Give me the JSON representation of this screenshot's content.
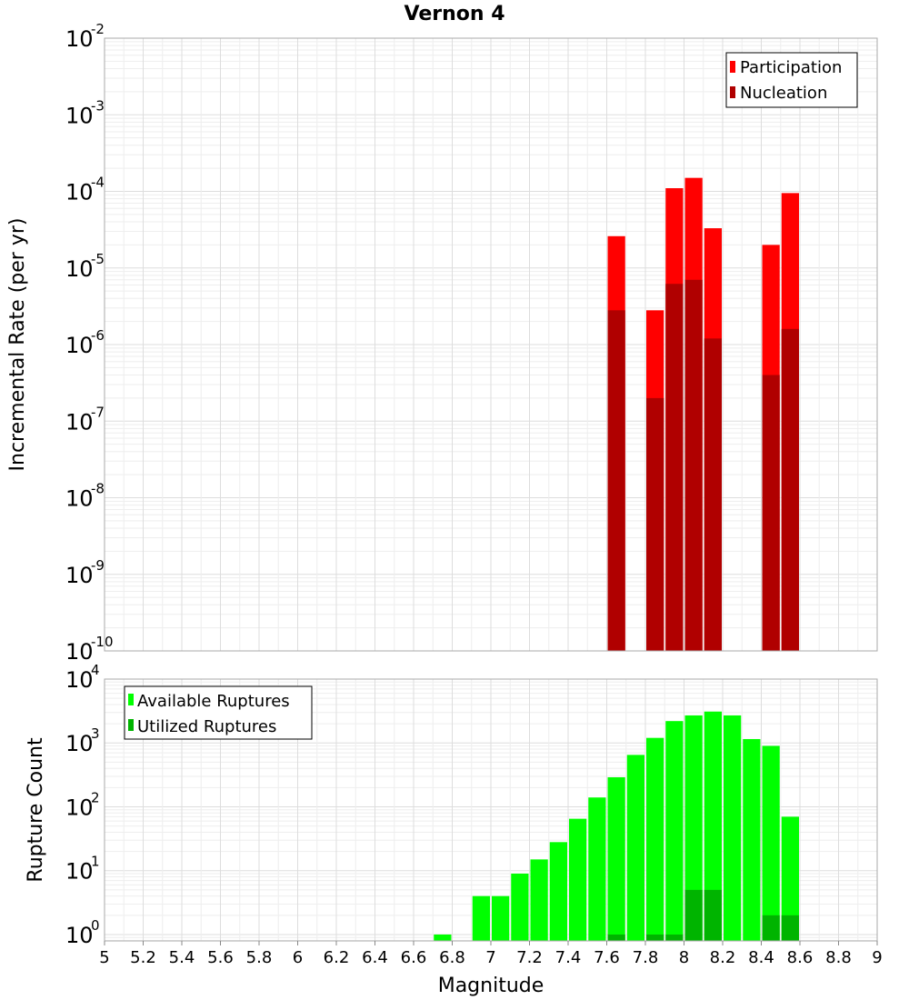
{
  "chart_data": [
    {
      "type": "bar",
      "title": "Vernon 4",
      "xlabel": "Magnitude",
      "ylabel": "Incremental Rate (per yr)",
      "yscale": "log",
      "ylim_exponent": [
        -10,
        -2
      ],
      "xlim": [
        5,
        9
      ],
      "grid": true,
      "legend_position": "top-right",
      "series": [
        {
          "name": "Participation",
          "color": "#ff0000",
          "points": [
            {
              "x": 7.65,
              "y": 2.6e-05
            },
            {
              "x": 7.85,
              "y": 2.8e-06
            },
            {
              "x": 7.95,
              "y": 0.00011
            },
            {
              "x": 8.05,
              "y": 0.00015
            },
            {
              "x": 8.15,
              "y": 3.3e-05
            },
            {
              "x": 8.45,
              "y": 2e-05
            },
            {
              "x": 8.55,
              "y": 9.5e-05
            }
          ]
        },
        {
          "name": "Nucleation",
          "color": "#b00000",
          "points": [
            {
              "x": 7.65,
              "y": 2.8e-06
            },
            {
              "x": 7.85,
              "y": 2e-07
            },
            {
              "x": 7.95,
              "y": 6.2e-06
            },
            {
              "x": 8.05,
              "y": 7e-06
            },
            {
              "x": 8.15,
              "y": 1.2e-06
            },
            {
              "x": 8.45,
              "y": 4e-07
            },
            {
              "x": 8.55,
              "y": 1.6e-06
            }
          ]
        }
      ]
    },
    {
      "type": "bar",
      "title": "",
      "xlabel": "Magnitude",
      "ylabel": "Rupture Count",
      "yscale": "log",
      "ylim_exponent": [
        -0.1,
        4
      ],
      "xlim": [
        5,
        9
      ],
      "x_ticks": [
        "5",
        "5.2",
        "5.4",
        "5.6",
        "5.8",
        "6",
        "6.2",
        "6.4",
        "6.6",
        "6.8",
        "7",
        "7.2",
        "7.4",
        "7.6",
        "7.8",
        "8",
        "8.2",
        "8.4",
        "8.6",
        "8.8",
        "9"
      ],
      "grid": true,
      "legend_position": "top-left",
      "series": [
        {
          "name": "Available Ruptures",
          "color": "#00ff00",
          "points": [
            {
              "x": 6.75,
              "y": 1
            },
            {
              "x": 6.95,
              "y": 4
            },
            {
              "x": 7.05,
              "y": 4
            },
            {
              "x": 7.15,
              "y": 9
            },
            {
              "x": 7.25,
              "y": 15
            },
            {
              "x": 7.35,
              "y": 28
            },
            {
              "x": 7.45,
              "y": 65
            },
            {
              "x": 7.55,
              "y": 140
            },
            {
              "x": 7.65,
              "y": 290
            },
            {
              "x": 7.75,
              "y": 650
            },
            {
              "x": 7.85,
              "y": 1200
            },
            {
              "x": 7.95,
              "y": 2200
            },
            {
              "x": 8.05,
              "y": 2700
            },
            {
              "x": 8.15,
              "y": 3100
            },
            {
              "x": 8.25,
              "y": 2700
            },
            {
              "x": 8.35,
              "y": 1150
            },
            {
              "x": 8.45,
              "y": 900
            },
            {
              "x": 8.55,
              "y": 70
            }
          ]
        },
        {
          "name": "Utilized Ruptures",
          "color": "#00b400",
          "points": [
            {
              "x": 7.65,
              "y": 1
            },
            {
              "x": 7.85,
              "y": 1
            },
            {
              "x": 7.95,
              "y": 1
            },
            {
              "x": 8.05,
              "y": 5
            },
            {
              "x": 8.15,
              "y": 5
            },
            {
              "x": 8.45,
              "y": 2
            },
            {
              "x": 8.55,
              "y": 2
            }
          ]
        }
      ]
    }
  ]
}
